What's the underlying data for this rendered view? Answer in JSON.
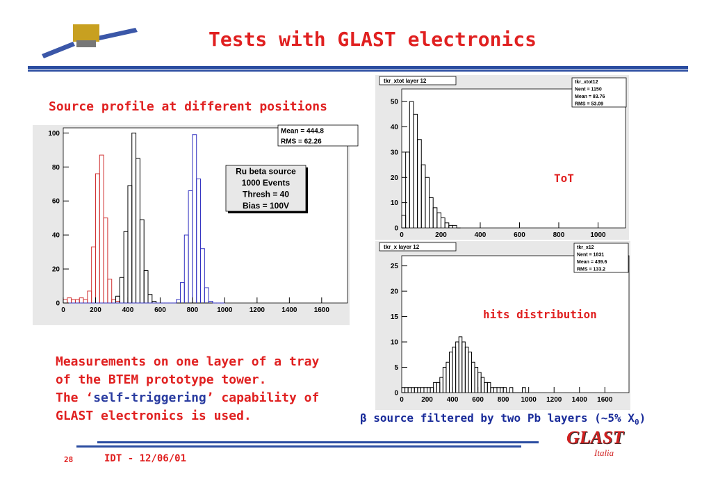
{
  "title": "Tests with GLAST electronics",
  "subtitle": "Source profile at different positions",
  "description": {
    "lines": [
      "Measurements on one layer of a tray",
      "of the BTEM prototype tower."
    ],
    "line3_pre": "The ‘",
    "line3_em": "self-triggering",
    "line3_post": "’ capability of",
    "line4": "GLAST electronics is used."
  },
  "caption": {
    "text": "β source filtered by two Pb layers (~5% X",
    "sub": "0",
    "tail": ")"
  },
  "footer": {
    "page": "28",
    "event": "IDT - 12/06/01",
    "logo": "GLAST",
    "logo_sub": "Italia"
  },
  "chart_data": [
    {
      "type": "histogram",
      "stats": [
        "Mean  = 444.8",
        "RMS   = 62.26"
      ],
      "annotation_lines": [
        "Ru beta source",
        "1000 Events",
        "Thresh = 40",
        "Bias = 100V"
      ],
      "bins": [
        0,
        25,
        50,
        75,
        100,
        125,
        150,
        175,
        200,
        225,
        250,
        275,
        300,
        325,
        350,
        375,
        400,
        425,
        450,
        475,
        500,
        525,
        550,
        575,
        600,
        625,
        650,
        675,
        700,
        725,
        750,
        775,
        800,
        825,
        850,
        875,
        900,
        925,
        950,
        975,
        1000
      ],
      "series": [
        {
          "color": "#d03030",
          "values": [
            2,
            3,
            2,
            2,
            3,
            2,
            7,
            33,
            76,
            87,
            50,
            14,
            2,
            1,
            0,
            0,
            0,
            0,
            0,
            0,
            0,
            0,
            0,
            0,
            0,
            0,
            0,
            0,
            0,
            0,
            0,
            0,
            0,
            0,
            0,
            0,
            0,
            0,
            0,
            0
          ]
        },
        {
          "color": "#000000",
          "values": [
            0,
            0,
            0,
            0,
            0,
            0,
            0,
            0,
            0,
            0,
            0,
            0,
            0,
            4,
            15,
            42,
            69,
            100,
            85,
            49,
            19,
            5,
            1,
            0,
            0,
            0,
            0,
            0,
            0,
            0,
            0,
            0,
            0,
            0,
            0,
            0,
            0,
            0,
            0,
            0
          ]
        },
        {
          "color": "#3030c0",
          "values": [
            0,
            0,
            0,
            0,
            0,
            0,
            0,
            0,
            0,
            0,
            0,
            0,
            0,
            0,
            0,
            0,
            0,
            0,
            0,
            0,
            0,
            0,
            0,
            0,
            0,
            0,
            0,
            0,
            2,
            12,
            40,
            66,
            99,
            73,
            32,
            9,
            1,
            0,
            0,
            0
          ]
        }
      ],
      "xlim": [
        0,
        1760
      ],
      "xticks": [
        0,
        200,
        400,
        600,
        800,
        1000,
        1200,
        1400,
        1600
      ],
      "ylim": [
        0,
        103
      ],
      "yticks": [
        0,
        20,
        40,
        60,
        80,
        100
      ]
    },
    {
      "type": "histogram",
      "title": "tkr_xtot layer 12",
      "stats": [
        "tkr_xtot12",
        "Nent = 1150",
        "Mean  = 83.76",
        "RMS   = 53.09"
      ],
      "label": "ToT",
      "bins": [
        0,
        20,
        40,
        60,
        80,
        100,
        120,
        140,
        160,
        180,
        200,
        220,
        240,
        260,
        280,
        300
      ],
      "series": [
        {
          "color": "#000000",
          "values": [
            5,
            30,
            50,
            45,
            35,
            25,
            20,
            12,
            8,
            6,
            4,
            2,
            1,
            1,
            0
          ]
        }
      ],
      "xlim": [
        0,
        1140
      ],
      "xticks": [
        0,
        200,
        400,
        600,
        800,
        1000
      ],
      "ylim": [
        0,
        55
      ],
      "yticks": [
        0,
        10,
        20,
        30,
        40,
        50
      ]
    },
    {
      "type": "histogram",
      "title": "tkr_x layer 12",
      "stats": [
        "tkr_x12",
        "Nent = 1831",
        "Mean  = 439.6",
        "RMS   = 133.2"
      ],
      "label": "hits distribution",
      "bins": [
        0,
        25,
        50,
        75,
        100,
        125,
        150,
        175,
        200,
        225,
        250,
        275,
        300,
        325,
        350,
        375,
        400,
        425,
        450,
        475,
        500,
        525,
        550,
        575,
        600,
        625,
        650,
        675,
        700,
        725,
        750,
        775,
        800,
        825,
        850,
        875,
        900,
        925,
        950,
        975,
        1000
      ],
      "series": [
        {
          "color": "#000000",
          "values": [
            1,
            1,
            1,
            1,
            1,
            1,
            1,
            1,
            1,
            1,
            2,
            2,
            3,
            5,
            6,
            8,
            9,
            10,
            11,
            10,
            9,
            8,
            6,
            5,
            4,
            3,
            2,
            2,
            1,
            1,
            1,
            1,
            1,
            0,
            1,
            0,
            0,
            0,
            1,
            0
          ]
        }
      ],
      "xlim": [
        0,
        1790
      ],
      "xticks": [
        0,
        200,
        400,
        600,
        800,
        1000,
        1200,
        1400,
        1600
      ],
      "ylim": [
        0,
        27
      ],
      "yticks": [
        0,
        5,
        10,
        15,
        20,
        25
      ]
    }
  ]
}
